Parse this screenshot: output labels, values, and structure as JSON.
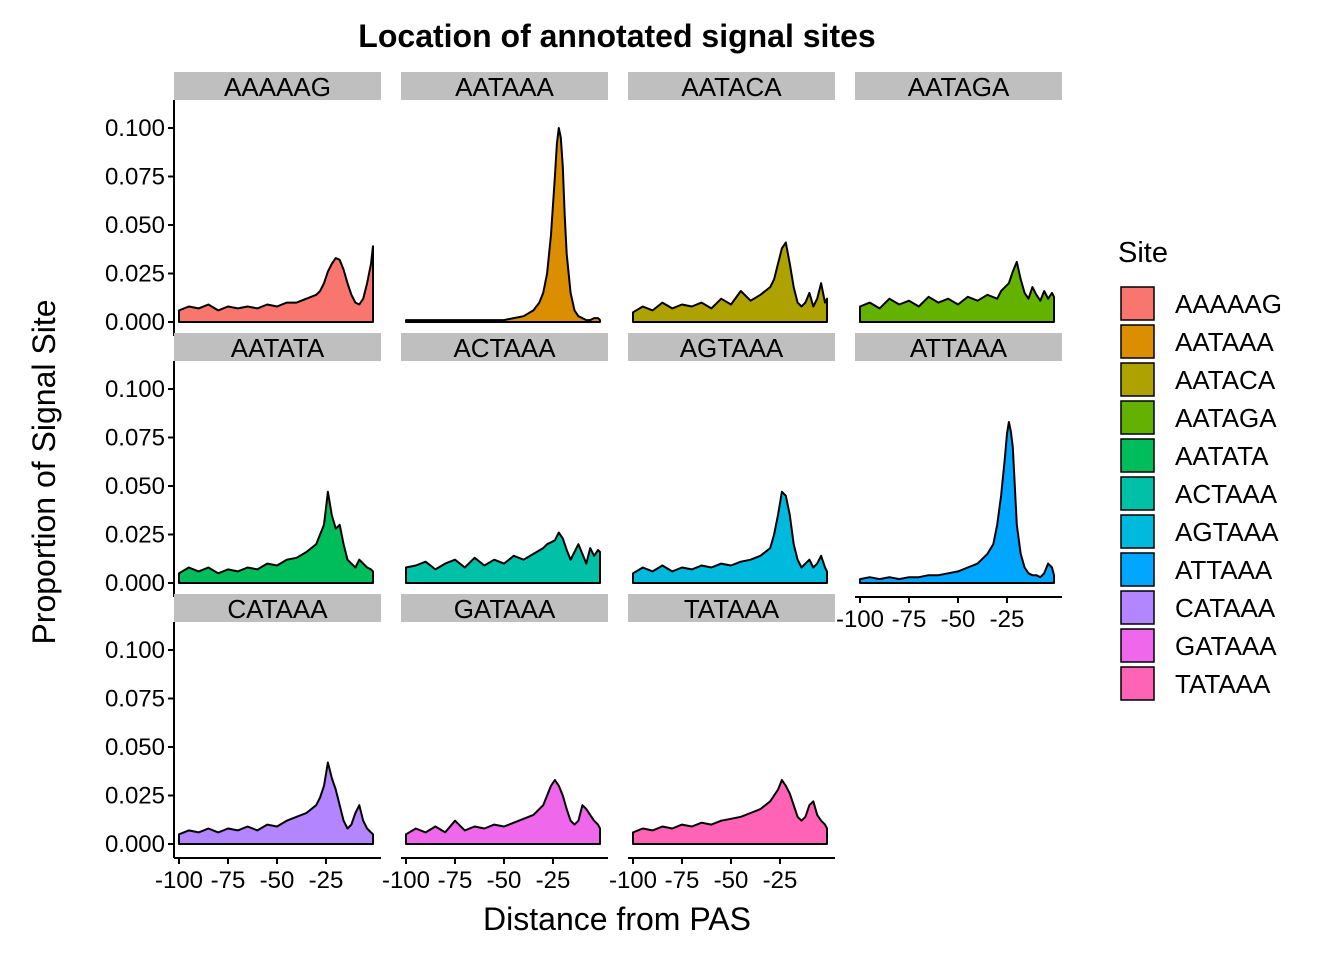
{
  "chart_data": {
    "type": "area",
    "title": "Location of annotated signal sites",
    "xlabel": "Distance from PAS",
    "ylabel": "Proportion of Signal Site",
    "xlim": [
      -100,
      -1
    ],
    "ylim": [
      0,
      0.1
    ],
    "x_ticks": [
      -100,
      -75,
      -50,
      -25
    ],
    "x_tick_labels": [
      "-100",
      "-75",
      "-50",
      "-25"
    ],
    "y_ticks": [
      0,
      0.025,
      0.05,
      0.075,
      0.1
    ],
    "y_tick_labels": [
      "0.000",
      "0.025",
      "0.050",
      "0.075",
      "0.100"
    ],
    "grid": false,
    "facet_layout": "4 columns, 3 rows",
    "legend": {
      "title": "Site",
      "placement": "right"
    },
    "series": [
      {
        "name": "AAAAAG",
        "color": "#F8766D",
        "x": [
          -100,
          -95,
          -90,
          -85,
          -80,
          -75,
          -70,
          -65,
          -60,
          -55,
          -50,
          -45,
          -40,
          -35,
          -30,
          -28,
          -26,
          -24,
          -22,
          -20,
          -18,
          -16,
          -14,
          -12,
          -10,
          -8,
          -6,
          -4,
          -2,
          -1
        ],
        "values": [
          0.006,
          0.008,
          0.007,
          0.009,
          0.006,
          0.008,
          0.007,
          0.008,
          0.007,
          0.009,
          0.008,
          0.01,
          0.01,
          0.012,
          0.014,
          0.016,
          0.02,
          0.026,
          0.03,
          0.033,
          0.032,
          0.027,
          0.02,
          0.014,
          0.01,
          0.009,
          0.012,
          0.02,
          0.03,
          0.039
        ]
      },
      {
        "name": "AATAAA",
        "color": "#DB8E00",
        "x": [
          -100,
          -90,
          -80,
          -70,
          -60,
          -50,
          -45,
          -40,
          -35,
          -32,
          -30,
          -28,
          -26,
          -24,
          -23,
          -22,
          -21,
          -20,
          -19,
          -18,
          -16,
          -14,
          -12,
          -10,
          -8,
          -6,
          -4,
          -2,
          -1
        ],
        "values": [
          0.001,
          0.001,
          0.001,
          0.001,
          0.001,
          0.001,
          0.002,
          0.003,
          0.006,
          0.01,
          0.015,
          0.025,
          0.045,
          0.075,
          0.092,
          0.1,
          0.095,
          0.08,
          0.055,
          0.035,
          0.015,
          0.006,
          0.003,
          0.002,
          0.001,
          0.001,
          0.002,
          0.002,
          0.001
        ]
      },
      {
        "name": "AATACA",
        "color": "#AEA200",
        "x": [
          -100,
          -95,
          -90,
          -85,
          -80,
          -75,
          -70,
          -65,
          -60,
          -55,
          -50,
          -45,
          -40,
          -35,
          -30,
          -28,
          -26,
          -24,
          -22,
          -20,
          -18,
          -16,
          -14,
          -12,
          -10,
          -8,
          -6,
          -4,
          -2,
          -1
        ],
        "values": [
          0.005,
          0.008,
          0.006,
          0.01,
          0.007,
          0.009,
          0.008,
          0.01,
          0.007,
          0.012,
          0.009,
          0.016,
          0.011,
          0.014,
          0.018,
          0.022,
          0.03,
          0.038,
          0.041,
          0.03,
          0.018,
          0.01,
          0.008,
          0.01,
          0.015,
          0.008,
          0.012,
          0.02,
          0.01,
          0.012
        ]
      },
      {
        "name": "AATAGA",
        "color": "#64B200",
        "x": [
          -100,
          -95,
          -90,
          -85,
          -80,
          -75,
          -70,
          -65,
          -60,
          -55,
          -50,
          -45,
          -40,
          -35,
          -30,
          -28,
          -26,
          -24,
          -22,
          -20,
          -18,
          -16,
          -14,
          -12,
          -10,
          -8,
          -6,
          -4,
          -2,
          -1
        ],
        "values": [
          0.008,
          0.01,
          0.007,
          0.012,
          0.009,
          0.011,
          0.008,
          0.013,
          0.01,
          0.012,
          0.009,
          0.013,
          0.011,
          0.014,
          0.012,
          0.016,
          0.018,
          0.02,
          0.026,
          0.031,
          0.022,
          0.015,
          0.012,
          0.018,
          0.014,
          0.011,
          0.016,
          0.012,
          0.015,
          0.013
        ]
      },
      {
        "name": "AATATA",
        "color": "#00BD5C",
        "x": [
          -100,
          -95,
          -90,
          -85,
          -80,
          -75,
          -70,
          -65,
          -60,
          -55,
          -50,
          -45,
          -40,
          -35,
          -30,
          -28,
          -26,
          -24,
          -22,
          -20,
          -18,
          -16,
          -14,
          -12,
          -10,
          -8,
          -6,
          -4,
          -2,
          -1
        ],
        "values": [
          0.005,
          0.008,
          0.006,
          0.008,
          0.005,
          0.007,
          0.006,
          0.008,
          0.007,
          0.01,
          0.009,
          0.012,
          0.013,
          0.016,
          0.02,
          0.025,
          0.03,
          0.047,
          0.035,
          0.028,
          0.03,
          0.02,
          0.012,
          0.01,
          0.008,
          0.012,
          0.01,
          0.008,
          0.007,
          0.006
        ]
      },
      {
        "name": "ACTAAA",
        "color": "#00C1A7",
        "x": [
          -100,
          -95,
          -90,
          -85,
          -80,
          -75,
          -70,
          -65,
          -60,
          -55,
          -50,
          -45,
          -40,
          -35,
          -30,
          -28,
          -26,
          -24,
          -22,
          -20,
          -18,
          -16,
          -14,
          -12,
          -10,
          -8,
          -6,
          -4,
          -2,
          -1
        ],
        "values": [
          0.008,
          0.009,
          0.011,
          0.007,
          0.01,
          0.012,
          0.008,
          0.013,
          0.009,
          0.012,
          0.01,
          0.014,
          0.012,
          0.015,
          0.018,
          0.02,
          0.021,
          0.022,
          0.026,
          0.023,
          0.017,
          0.012,
          0.016,
          0.02,
          0.015,
          0.01,
          0.018,
          0.014,
          0.017,
          0.016
        ]
      },
      {
        "name": "AGTAAA",
        "color": "#00BADE",
        "x": [
          -100,
          -95,
          -90,
          -85,
          -80,
          -75,
          -70,
          -65,
          -60,
          -55,
          -50,
          -45,
          -40,
          -35,
          -30,
          -28,
          -26,
          -24,
          -22,
          -20,
          -18,
          -16,
          -14,
          -12,
          -10,
          -8,
          -6,
          -4,
          -2,
          -1
        ],
        "values": [
          0.005,
          0.008,
          0.006,
          0.009,
          0.006,
          0.008,
          0.007,
          0.009,
          0.008,
          0.01,
          0.009,
          0.011,
          0.012,
          0.014,
          0.018,
          0.025,
          0.035,
          0.047,
          0.045,
          0.035,
          0.02,
          0.012,
          0.008,
          0.01,
          0.012,
          0.008,
          0.01,
          0.014,
          0.008,
          0.006
        ]
      },
      {
        "name": "ATTAAA",
        "color": "#00A6FF",
        "x": [
          -100,
          -95,
          -90,
          -85,
          -80,
          -75,
          -70,
          -65,
          -60,
          -55,
          -50,
          -45,
          -40,
          -35,
          -32,
          -30,
          -28,
          -26,
          -25,
          -24,
          -23,
          -22,
          -21,
          -20,
          -18,
          -16,
          -14,
          -12,
          -10,
          -8,
          -6,
          -4,
          -2,
          -1
        ],
        "values": [
          0.002,
          0.003,
          0.002,
          0.003,
          0.002,
          0.003,
          0.003,
          0.004,
          0.004,
          0.005,
          0.006,
          0.008,
          0.01,
          0.015,
          0.02,
          0.03,
          0.045,
          0.065,
          0.077,
          0.083,
          0.078,
          0.07,
          0.05,
          0.03,
          0.015,
          0.008,
          0.005,
          0.004,
          0.004,
          0.003,
          0.005,
          0.01,
          0.008,
          0.004
        ]
      },
      {
        "name": "CATAAA",
        "color": "#B385FF",
        "x": [
          -100,
          -95,
          -90,
          -85,
          -80,
          -75,
          -70,
          -65,
          -60,
          -55,
          -50,
          -45,
          -40,
          -35,
          -30,
          -28,
          -26,
          -24,
          -22,
          -20,
          -18,
          -16,
          -14,
          -12,
          -10,
          -8,
          -6,
          -4,
          -2,
          -1
        ],
        "values": [
          0.005,
          0.007,
          0.006,
          0.008,
          0.006,
          0.008,
          0.007,
          0.009,
          0.007,
          0.01,
          0.009,
          0.012,
          0.014,
          0.016,
          0.02,
          0.024,
          0.03,
          0.042,
          0.034,
          0.028,
          0.02,
          0.012,
          0.008,
          0.01,
          0.016,
          0.02,
          0.012,
          0.008,
          0.006,
          0.005
        ]
      },
      {
        "name": "GATAAA",
        "color": "#EF67EB",
        "x": [
          -100,
          -95,
          -90,
          -85,
          -80,
          -75,
          -70,
          -65,
          -60,
          -55,
          -50,
          -45,
          -40,
          -35,
          -30,
          -28,
          -26,
          -24,
          -22,
          -20,
          -18,
          -16,
          -14,
          -12,
          -10,
          -8,
          -6,
          -4,
          -2,
          -1
        ],
        "values": [
          0.005,
          0.008,
          0.006,
          0.009,
          0.006,
          0.012,
          0.007,
          0.009,
          0.008,
          0.01,
          0.009,
          0.011,
          0.013,
          0.015,
          0.02,
          0.025,
          0.03,
          0.033,
          0.03,
          0.025,
          0.018,
          0.012,
          0.01,
          0.012,
          0.02,
          0.018,
          0.015,
          0.012,
          0.01,
          0.008
        ]
      },
      {
        "name": "TATAAA",
        "color": "#FF63B6",
        "x": [
          -100,
          -95,
          -90,
          -85,
          -80,
          -75,
          -70,
          -65,
          -60,
          -55,
          -50,
          -45,
          -40,
          -35,
          -30,
          -28,
          -26,
          -24,
          -22,
          -20,
          -18,
          -16,
          -14,
          -12,
          -10,
          -8,
          -6,
          -4,
          -2,
          -1
        ],
        "values": [
          0.006,
          0.008,
          0.007,
          0.009,
          0.008,
          0.01,
          0.009,
          0.011,
          0.01,
          0.012,
          0.013,
          0.014,
          0.016,
          0.018,
          0.022,
          0.025,
          0.028,
          0.033,
          0.03,
          0.026,
          0.02,
          0.014,
          0.012,
          0.014,
          0.02,
          0.022,
          0.015,
          0.012,
          0.01,
          0.008
        ]
      }
    ]
  }
}
